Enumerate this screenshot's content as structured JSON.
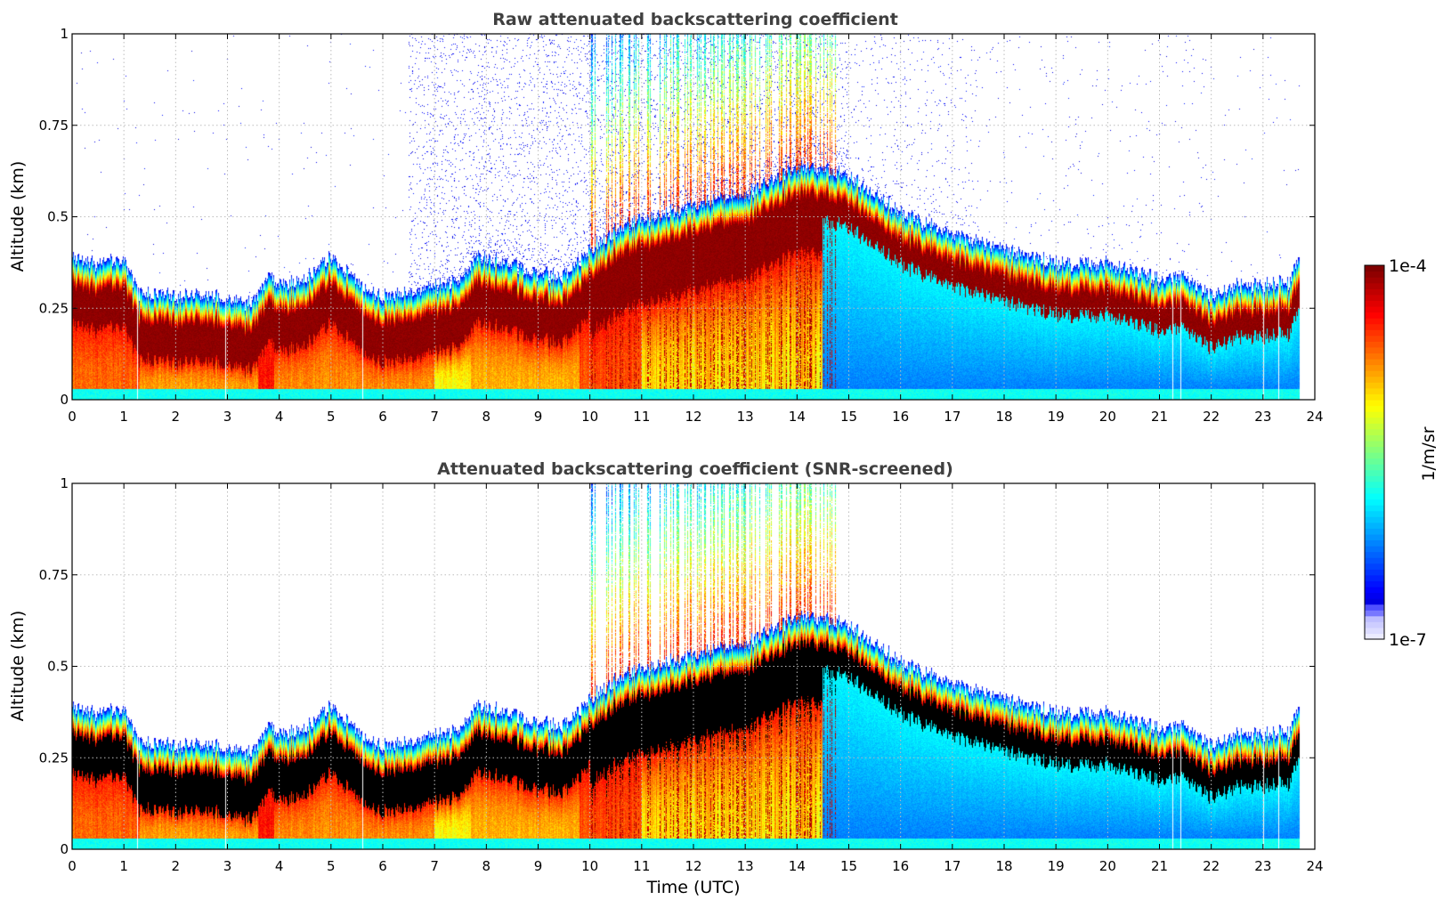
{
  "chart_data": [
    {
      "type": "heatmap",
      "title": "Raw attenuated backscattering coefficient",
      "xlabel": "",
      "ylabel": "Altitude (km)",
      "xlim": [
        0,
        24
      ],
      "ylim": [
        0,
        1
      ],
      "x_ticks": [
        "0",
        "1",
        "2",
        "3",
        "4",
        "5",
        "6",
        "7",
        "8",
        "9",
        "10",
        "11",
        "12",
        "13",
        "14",
        "15",
        "16",
        "17",
        "18",
        "19",
        "20",
        "21",
        "22",
        "23",
        "24"
      ],
      "y_ticks": [
        "0",
        "0.25",
        "0.5",
        "0.75",
        "1"
      ],
      "grid": true,
      "screened": false,
      "layer_top_km": {
        "x": [
          0,
          0.5,
          1,
          1.3,
          2,
          2.5,
          3,
          3.5,
          3.8,
          4,
          4.5,
          5,
          5.5,
          6,
          6.5,
          7,
          7.5,
          7.8,
          8.5,
          9,
          9.5,
          10,
          10.5,
          11,
          12,
          13,
          14,
          14.5,
          15,
          15.5,
          16,
          17,
          18,
          19,
          20,
          21,
          21.5,
          22,
          22.5,
          23,
          23.5,
          23.7
        ],
        "y": [
          0.38,
          0.36,
          0.37,
          0.28,
          0.27,
          0.28,
          0.26,
          0.25,
          0.33,
          0.3,
          0.32,
          0.38,
          0.31,
          0.27,
          0.28,
          0.3,
          0.31,
          0.38,
          0.36,
          0.33,
          0.33,
          0.4,
          0.45,
          0.48,
          0.52,
          0.55,
          0.62,
          0.62,
          0.6,
          0.55,
          0.5,
          0.44,
          0.4,
          0.36,
          0.36,
          0.32,
          0.33,
          0.27,
          0.3,
          0.3,
          0.31,
          0.38
        ]
      },
      "data_end_utc": 23.7
    },
    {
      "type": "heatmap",
      "title": "Attenuated backscattering coefficient (SNR-screened)",
      "xlabel": "Time (UTC)",
      "ylabel": "Altitude (km)",
      "xlim": [
        0,
        24
      ],
      "ylim": [
        0,
        1
      ],
      "x_ticks": [
        "0",
        "1",
        "2",
        "3",
        "4",
        "5",
        "6",
        "7",
        "8",
        "9",
        "10",
        "11",
        "12",
        "13",
        "14",
        "15",
        "16",
        "17",
        "18",
        "19",
        "20",
        "21",
        "22",
        "23",
        "24"
      ],
      "y_ticks": [
        "0",
        "0.25",
        "0.5",
        "0.75",
        "1"
      ],
      "grid": true,
      "screened": true,
      "data_end_utc": 23.7
    }
  ],
  "colorbar": {
    "label": "1/m/sr",
    "max_label": "1e-4",
    "min_label": "1e-7",
    "scale": "log",
    "colormap": "jet",
    "saturation_color_screened": "#000000"
  }
}
